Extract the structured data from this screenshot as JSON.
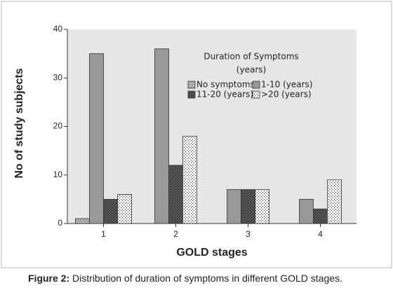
{
  "chart_data": {
    "type": "bar",
    "y_label": "No of study subjects",
    "x_label": "GOLD stages",
    "categories": [
      "1",
      "2",
      "3",
      "4"
    ],
    "series": [
      {
        "name": "No symptoms",
        "color": "#c8c8c8",
        "pattern": "crosshatch",
        "values": [
          1,
          null,
          null,
          null
        ]
      },
      {
        "name": "1-10 (years)",
        "color": "#999999",
        "pattern": "solid",
        "values": [
          35,
          36,
          7,
          5
        ]
      },
      {
        "name": "11-20 (years)",
        "color": "#555555",
        "pattern": "dots",
        "values": [
          5,
          12,
          7,
          3
        ]
      },
      {
        "name": ">20 (years)",
        "color": "#ffffff",
        "pattern": "dots",
        "values": [
          6,
          18,
          7,
          9
        ]
      }
    ],
    "legend_title": [
      "Duration of Symptoms",
      "(years)"
    ],
    "ylim": [
      0,
      40
    ],
    "yticks": [
      0,
      10,
      20,
      30,
      40
    ],
    "caption_label": "Figure 2:",
    "caption_text": "Distribution of duration of symptoms in different GOLD stages."
  }
}
